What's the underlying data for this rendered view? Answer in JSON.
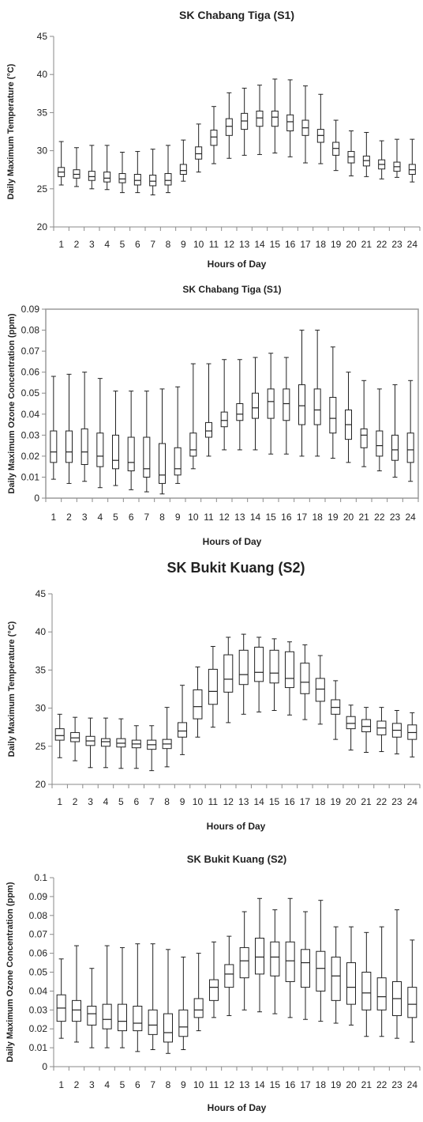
{
  "chart_data": [
    {
      "type": "box",
      "title": "SK Chabang Tiga (S1)",
      "xlabel": "Hours of Day",
      "ylabel": "Daily Maximum Temperature (°C)",
      "ylim": [
        20,
        45
      ],
      "yticks": [
        "20",
        "25",
        "30",
        "35",
        "40",
        "45"
      ],
      "categories": [
        "1",
        "2",
        "3",
        "4",
        "5",
        "6",
        "7",
        "8",
        "9",
        "10",
        "11",
        "12",
        "13",
        "14",
        "15",
        "16",
        "17",
        "18",
        "19",
        "20",
        "21",
        "22",
        "23",
        "24"
      ],
      "boxes": [
        {
          "min": 25.5,
          "q1": 26.6,
          "median": 27.2,
          "q3": 27.8,
          "max": 31.2
        },
        {
          "min": 25.3,
          "q1": 26.4,
          "median": 26.9,
          "q3": 27.5,
          "max": 30.4
        },
        {
          "min": 25.0,
          "q1": 26.1,
          "median": 26.6,
          "q3": 27.3,
          "max": 30.7
        },
        {
          "min": 24.9,
          "q1": 25.9,
          "median": 26.4,
          "q3": 27.2,
          "max": 30.7
        },
        {
          "min": 24.5,
          "q1": 25.8,
          "median": 26.3,
          "q3": 27.0,
          "max": 29.8
        },
        {
          "min": 24.5,
          "q1": 25.5,
          "median": 26.1,
          "q3": 26.9,
          "max": 29.9
        },
        {
          "min": 24.2,
          "q1": 25.4,
          "median": 26.0,
          "q3": 26.8,
          "max": 30.2
        },
        {
          "min": 24.5,
          "q1": 25.5,
          "median": 26.1,
          "q3": 27.0,
          "max": 30.7
        },
        {
          "min": 26.0,
          "q1": 26.9,
          "median": 27.4,
          "q3": 28.2,
          "max": 31.4
        },
        {
          "min": 27.2,
          "q1": 28.9,
          "median": 29.6,
          "q3": 30.5,
          "max": 33.5
        },
        {
          "min": 28.3,
          "q1": 30.7,
          "median": 31.8,
          "q3": 32.7,
          "max": 35.8
        },
        {
          "min": 29.0,
          "q1": 32.0,
          "median": 33.2,
          "q3": 34.2,
          "max": 37.6
        },
        {
          "min": 29.4,
          "q1": 32.8,
          "median": 33.9,
          "q3": 34.9,
          "max": 38.2
        },
        {
          "min": 29.5,
          "q1": 33.2,
          "median": 34.3,
          "q3": 35.2,
          "max": 38.6
        },
        {
          "min": 29.7,
          "q1": 33.2,
          "median": 34.4,
          "q3": 35.2,
          "max": 39.4
        },
        {
          "min": 29.2,
          "q1": 32.6,
          "median": 33.8,
          "q3": 34.7,
          "max": 39.3
        },
        {
          "min": 28.4,
          "q1": 32.0,
          "median": 33.0,
          "q3": 34.0,
          "max": 38.5
        },
        {
          "min": 28.3,
          "q1": 31.1,
          "median": 32.0,
          "q3": 32.8,
          "max": 37.4
        },
        {
          "min": 27.4,
          "q1": 29.4,
          "median": 30.3,
          "q3": 31.1,
          "max": 34.0
        },
        {
          "min": 26.7,
          "q1": 28.4,
          "median": 29.2,
          "q3": 29.9,
          "max": 32.6
        },
        {
          "min": 26.6,
          "q1": 28.0,
          "median": 28.7,
          "q3": 29.3,
          "max": 32.4
        },
        {
          "min": 26.3,
          "q1": 27.6,
          "median": 28.2,
          "q3": 28.8,
          "max": 31.3
        },
        {
          "min": 26.5,
          "q1": 27.3,
          "median": 27.9,
          "q3": 28.5,
          "max": 31.5
        },
        {
          "min": 25.9,
          "q1": 26.9,
          "median": 27.5,
          "q3": 28.2,
          "max": 31.5
        }
      ]
    },
    {
      "type": "box",
      "title": "SK Chabang Tiga (S1)",
      "xlabel": "Hours of Day",
      "ylabel": "Daily Maximum Ozone Concentration (ppm)",
      "ylim": [
        0,
        0.09
      ],
      "yticks": [
        "0",
        "0.01",
        "0.02",
        "0.03",
        "0.04",
        "0.05",
        "0.06",
        "0.07",
        "0.08",
        "0.09"
      ],
      "categories": [
        "1",
        "2",
        "3",
        "4",
        "5",
        "6",
        "7",
        "8",
        "9",
        "10",
        "11",
        "12",
        "13",
        "14",
        "15",
        "16",
        "17",
        "18",
        "19",
        "20",
        "21",
        "22",
        "23",
        "24"
      ],
      "boxes": [
        {
          "min": 0.009,
          "q1": 0.017,
          "median": 0.022,
          "q3": 0.032,
          "max": 0.058
        },
        {
          "min": 0.007,
          "q1": 0.017,
          "median": 0.022,
          "q3": 0.032,
          "max": 0.059
        },
        {
          "min": 0.008,
          "q1": 0.016,
          "median": 0.022,
          "q3": 0.033,
          "max": 0.06
        },
        {
          "min": 0.005,
          "q1": 0.015,
          "median": 0.02,
          "q3": 0.031,
          "max": 0.057
        },
        {
          "min": 0.006,
          "q1": 0.014,
          "median": 0.018,
          "q3": 0.03,
          "max": 0.051
        },
        {
          "min": 0.004,
          "q1": 0.013,
          "median": 0.017,
          "q3": 0.029,
          "max": 0.051
        },
        {
          "min": 0.003,
          "q1": 0.01,
          "median": 0.014,
          "q3": 0.029,
          "max": 0.051
        },
        {
          "min": 0.002,
          "q1": 0.007,
          "median": 0.011,
          "q3": 0.026,
          "max": 0.052
        },
        {
          "min": 0.007,
          "q1": 0.011,
          "median": 0.014,
          "q3": 0.024,
          "max": 0.053
        },
        {
          "min": 0.014,
          "q1": 0.02,
          "median": 0.023,
          "q3": 0.031,
          "max": 0.064
        },
        {
          "min": 0.02,
          "q1": 0.029,
          "median": 0.032,
          "q3": 0.036,
          "max": 0.064
        },
        {
          "min": 0.023,
          "q1": 0.034,
          "median": 0.037,
          "q3": 0.041,
          "max": 0.066
        },
        {
          "min": 0.023,
          "q1": 0.037,
          "median": 0.04,
          "q3": 0.045,
          "max": 0.066
        },
        {
          "min": 0.023,
          "q1": 0.038,
          "median": 0.043,
          "q3": 0.05,
          "max": 0.067
        },
        {
          "min": 0.021,
          "q1": 0.038,
          "median": 0.046,
          "q3": 0.052,
          "max": 0.069
        },
        {
          "min": 0.021,
          "q1": 0.037,
          "median": 0.045,
          "q3": 0.052,
          "max": 0.067
        },
        {
          "min": 0.02,
          "q1": 0.035,
          "median": 0.044,
          "q3": 0.054,
          "max": 0.08
        },
        {
          "min": 0.02,
          "q1": 0.035,
          "median": 0.042,
          "q3": 0.052,
          "max": 0.08
        },
        {
          "min": 0.019,
          "q1": 0.031,
          "median": 0.038,
          "q3": 0.048,
          "max": 0.072
        },
        {
          "min": 0.017,
          "q1": 0.028,
          "median": 0.035,
          "q3": 0.042,
          "max": 0.06
        },
        {
          "min": 0.015,
          "q1": 0.024,
          "median": 0.03,
          "q3": 0.033,
          "max": 0.056
        },
        {
          "min": 0.013,
          "q1": 0.02,
          "median": 0.025,
          "q3": 0.032,
          "max": 0.052
        },
        {
          "min": 0.01,
          "q1": 0.018,
          "median": 0.023,
          "q3": 0.03,
          "max": 0.054
        },
        {
          "min": 0.008,
          "q1": 0.017,
          "median": 0.023,
          "q3": 0.031,
          "max": 0.056
        }
      ]
    },
    {
      "type": "box",
      "title": "SK Bukit Kuang (S2)",
      "xlabel": "Hours of Day",
      "ylabel": "Daily Maximum Temperature (°C)",
      "ylim": [
        20,
        45
      ],
      "yticks": [
        "20",
        "25",
        "30",
        "35",
        "40",
        "45"
      ],
      "categories": [
        "1",
        "2",
        "3",
        "4",
        "5",
        "6",
        "7",
        "8",
        "9",
        "10",
        "11",
        "12",
        "13",
        "14",
        "15",
        "16",
        "17",
        "18",
        "19",
        "20",
        "21",
        "22",
        "23",
        "24"
      ],
      "boxes": [
        {
          "min": 23.5,
          "q1": 25.8,
          "median": 26.4,
          "q3": 27.3,
          "max": 29.2
        },
        {
          "min": 23.1,
          "q1": 25.6,
          "median": 26.1,
          "q3": 26.8,
          "max": 28.8
        },
        {
          "min": 22.2,
          "q1": 25.1,
          "median": 25.7,
          "q3": 26.3,
          "max": 28.7
        },
        {
          "min": 22.2,
          "q1": 25.0,
          "median": 25.6,
          "q3": 26.0,
          "max": 28.7
        },
        {
          "min": 22.1,
          "q1": 24.9,
          "median": 25.4,
          "q3": 26.0,
          "max": 28.6
        },
        {
          "min": 22.1,
          "q1": 24.8,
          "median": 25.3,
          "q3": 25.8,
          "max": 27.7
        },
        {
          "min": 21.8,
          "q1": 24.6,
          "median": 25.2,
          "q3": 25.8,
          "max": 27.7
        },
        {
          "min": 22.3,
          "q1": 24.7,
          "median": 25.3,
          "q3": 25.9,
          "max": 30.1
        },
        {
          "min": 23.9,
          "q1": 26.2,
          "median": 27.0,
          "q3": 28.1,
          "max": 33.0
        },
        {
          "min": 26.2,
          "q1": 28.6,
          "median": 30.2,
          "q3": 32.4,
          "max": 35.4
        },
        {
          "min": 27.5,
          "q1": 30.5,
          "median": 32.2,
          "q3": 35.1,
          "max": 38.1
        },
        {
          "min": 28.1,
          "q1": 32.1,
          "median": 33.8,
          "q3": 37.0,
          "max": 39.3
        },
        {
          "min": 29.2,
          "q1": 33.1,
          "median": 34.4,
          "q3": 37.6,
          "max": 39.7
        },
        {
          "min": 29.5,
          "q1": 33.5,
          "median": 34.7,
          "q3": 38.0,
          "max": 39.3
        },
        {
          "min": 29.7,
          "q1": 33.3,
          "median": 34.6,
          "q3": 37.6,
          "max": 39.1
        },
        {
          "min": 29.1,
          "q1": 32.7,
          "median": 33.9,
          "q3": 37.4,
          "max": 38.7
        },
        {
          "min": 28.5,
          "q1": 31.9,
          "median": 33.4,
          "q3": 35.9,
          "max": 38.3
        },
        {
          "min": 27.9,
          "q1": 30.9,
          "median": 32.5,
          "q3": 33.9,
          "max": 36.9
        },
        {
          "min": 25.9,
          "q1": 29.2,
          "median": 30.1,
          "q3": 31.1,
          "max": 33.6
        },
        {
          "min": 24.5,
          "q1": 27.3,
          "median": 28.0,
          "q3": 28.9,
          "max": 30.4
        },
        {
          "min": 24.2,
          "q1": 26.9,
          "median": 27.6,
          "q3": 28.5,
          "max": 30.1
        },
        {
          "min": 24.3,
          "q1": 26.5,
          "median": 27.4,
          "q3": 28.3,
          "max": 30.1
        },
        {
          "min": 24.0,
          "q1": 26.2,
          "median": 27.1,
          "q3": 28.0,
          "max": 29.7
        },
        {
          "min": 23.6,
          "q1": 25.9,
          "median": 26.8,
          "q3": 27.8,
          "max": 29.4
        }
      ]
    },
    {
      "type": "box",
      "title": "SK Bukit Kuang  (S2)",
      "xlabel": "Hours of Day",
      "ylabel": "Daily Maximum Ozone Concentration (ppm)",
      "ylim": [
        0,
        0.1
      ],
      "yticks": [
        "0",
        "0.01",
        "0.02",
        "0.03",
        "0.04",
        "0.05",
        "0.06",
        "0.07",
        "0.08",
        "0.09",
        "0.1"
      ],
      "categories": [
        "1",
        "2",
        "3",
        "4",
        "5",
        "6",
        "7",
        "8",
        "9",
        "10",
        "11",
        "12",
        "13",
        "14",
        "15",
        "16",
        "17",
        "18",
        "19",
        "20",
        "21",
        "22",
        "23",
        "24"
      ],
      "boxes": [
        {
          "min": 0.015,
          "q1": 0.024,
          "median": 0.031,
          "q3": 0.038,
          "max": 0.057
        },
        {
          "min": 0.013,
          "q1": 0.024,
          "median": 0.03,
          "q3": 0.035,
          "max": 0.064
        },
        {
          "min": 0.01,
          "q1": 0.022,
          "median": 0.028,
          "q3": 0.032,
          "max": 0.052
        },
        {
          "min": 0.01,
          "q1": 0.02,
          "median": 0.025,
          "q3": 0.033,
          "max": 0.064
        },
        {
          "min": 0.01,
          "q1": 0.019,
          "median": 0.024,
          "q3": 0.033,
          "max": 0.063
        },
        {
          "min": 0.008,
          "q1": 0.019,
          "median": 0.023,
          "q3": 0.032,
          "max": 0.065
        },
        {
          "min": 0.009,
          "q1": 0.017,
          "median": 0.022,
          "q3": 0.03,
          "max": 0.065
        },
        {
          "min": 0.007,
          "q1": 0.013,
          "median": 0.018,
          "q3": 0.028,
          "max": 0.062
        },
        {
          "min": 0.009,
          "q1": 0.016,
          "median": 0.021,
          "q3": 0.03,
          "max": 0.058
        },
        {
          "min": 0.019,
          "q1": 0.026,
          "median": 0.03,
          "q3": 0.036,
          "max": 0.06
        },
        {
          "min": 0.026,
          "q1": 0.035,
          "median": 0.042,
          "q3": 0.046,
          "max": 0.066
        },
        {
          "min": 0.027,
          "q1": 0.042,
          "median": 0.049,
          "q3": 0.054,
          "max": 0.069
        },
        {
          "min": 0.03,
          "q1": 0.047,
          "median": 0.056,
          "q3": 0.063,
          "max": 0.082
        },
        {
          "min": 0.029,
          "q1": 0.049,
          "median": 0.058,
          "q3": 0.068,
          "max": 0.089
        },
        {
          "min": 0.028,
          "q1": 0.048,
          "median": 0.058,
          "q3": 0.066,
          "max": 0.083
        },
        {
          "min": 0.026,
          "q1": 0.045,
          "median": 0.056,
          "q3": 0.066,
          "max": 0.089
        },
        {
          "min": 0.025,
          "q1": 0.042,
          "median": 0.055,
          "q3": 0.062,
          "max": 0.082
        },
        {
          "min": 0.024,
          "q1": 0.04,
          "median": 0.052,
          "q3": 0.061,
          "max": 0.088
        },
        {
          "min": 0.023,
          "q1": 0.035,
          "median": 0.048,
          "q3": 0.058,
          "max": 0.074
        },
        {
          "min": 0.022,
          "q1": 0.033,
          "median": 0.042,
          "q3": 0.055,
          "max": 0.074
        },
        {
          "min": 0.016,
          "q1": 0.03,
          "median": 0.039,
          "q3": 0.05,
          "max": 0.071
        },
        {
          "min": 0.016,
          "q1": 0.03,
          "median": 0.037,
          "q3": 0.047,
          "max": 0.074
        },
        {
          "min": 0.015,
          "q1": 0.027,
          "median": 0.036,
          "q3": 0.045,
          "max": 0.083
        },
        {
          "min": 0.013,
          "q1": 0.026,
          "median": 0.033,
          "q3": 0.042,
          "max": 0.067
        }
      ]
    }
  ]
}
